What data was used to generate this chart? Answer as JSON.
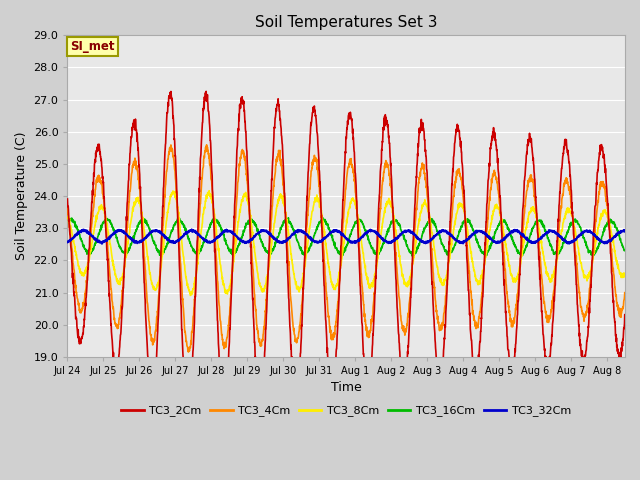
{
  "title": "Soil Temperatures Set 3",
  "xlabel": "Time",
  "ylabel": "Soil Temperature (C)",
  "ylim": [
    19.0,
    29.0
  ],
  "yticks": [
    19.0,
    20.0,
    21.0,
    22.0,
    23.0,
    24.0,
    25.0,
    26.0,
    27.0,
    28.0,
    29.0
  ],
  "fig_bg": "#d0d0d0",
  "plot_bg": "#e8e8e8",
  "series": {
    "TC3_2Cm": {
      "color": "#cc0000",
      "lw": 1.2
    },
    "TC3_4Cm": {
      "color": "#ff8800",
      "lw": 1.2
    },
    "TC3_8Cm": {
      "color": "#ffee00",
      "lw": 1.2
    },
    "TC3_16Cm": {
      "color": "#00bb00",
      "lw": 1.2
    },
    "TC3_32Cm": {
      "color": "#0000cc",
      "lw": 1.5
    }
  },
  "annotation_text": "SI_met",
  "annotation_color": "#880000",
  "annotation_bg": "#ffffaa",
  "annotation_border": "#999900",
  "xtick_labels": [
    "Jul 24",
    "Jul 25",
    "Jul 26",
    "Jul 27",
    "Jul 28",
    "Jul 29",
    "Jul 30",
    "Jul 31",
    "Aug 1",
    "Aug 2",
    "Aug 3",
    "Aug 4",
    "Aug 5",
    "Aug 6",
    "Aug 7",
    "Aug 8"
  ],
  "n_days": 15.5,
  "samples_per_day": 144
}
